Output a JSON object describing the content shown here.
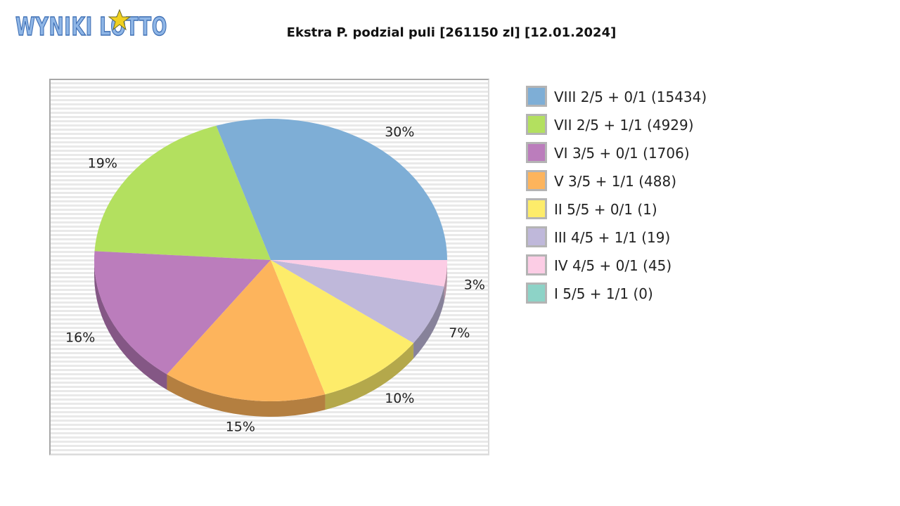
{
  "logo": {
    "text": "WYNIKI LOTTO",
    "colors": {
      "fill": "#8fb6e6",
      "stroke": "#3f6fb4",
      "star": "#f0d020"
    }
  },
  "chart_data": {
    "type": "pie",
    "title": "Ekstra P. podzial puli [261150 zl] [12.01.2024]",
    "legend_position": "right",
    "slices": [
      {
        "label": "VIII 2/5 + 0/1 (15434)",
        "percent": 30,
        "pct_label": "30%",
        "color": "#7eaed6",
        "shade": "#567b98"
      },
      {
        "label": "VII 2/5 + 1/1 (4929)",
        "percent": 19,
        "pct_label": "19%",
        "color": "#b3e05f",
        "shade": "#7a9a40"
      },
      {
        "label": "VI 3/5 + 0/1 (1706)",
        "percent": 16,
        "pct_label": "16%",
        "color": "#bb7dbc",
        "shade": "#845785"
      },
      {
        "label": "V 3/5 + 1/1 (488)",
        "percent": 15,
        "pct_label": "15%",
        "color": "#fdb45c",
        "shade": "#b47f40"
      },
      {
        "label": "II 5/5 + 0/1 (1)",
        "percent": 10,
        "pct_label": "10%",
        "color": "#fdec6a",
        "shade": "#b4a84b"
      },
      {
        "label": "III 4/5 + 1/1 (19)",
        "percent": 7,
        "pct_label": "7%",
        "color": "#bfb8da",
        "shade": "#87829a"
      },
      {
        "label": "IV 4/5 + 0/1 (45)",
        "percent": 3,
        "pct_label": "3%",
        "color": "#fccde5",
        "shade": "#b291a2"
      },
      {
        "label": "I 5/5 + 1/1 (0)",
        "percent": 0,
        "pct_label": "",
        "color": "#8dd3c7",
        "shade": "#63958c"
      }
    ]
  }
}
